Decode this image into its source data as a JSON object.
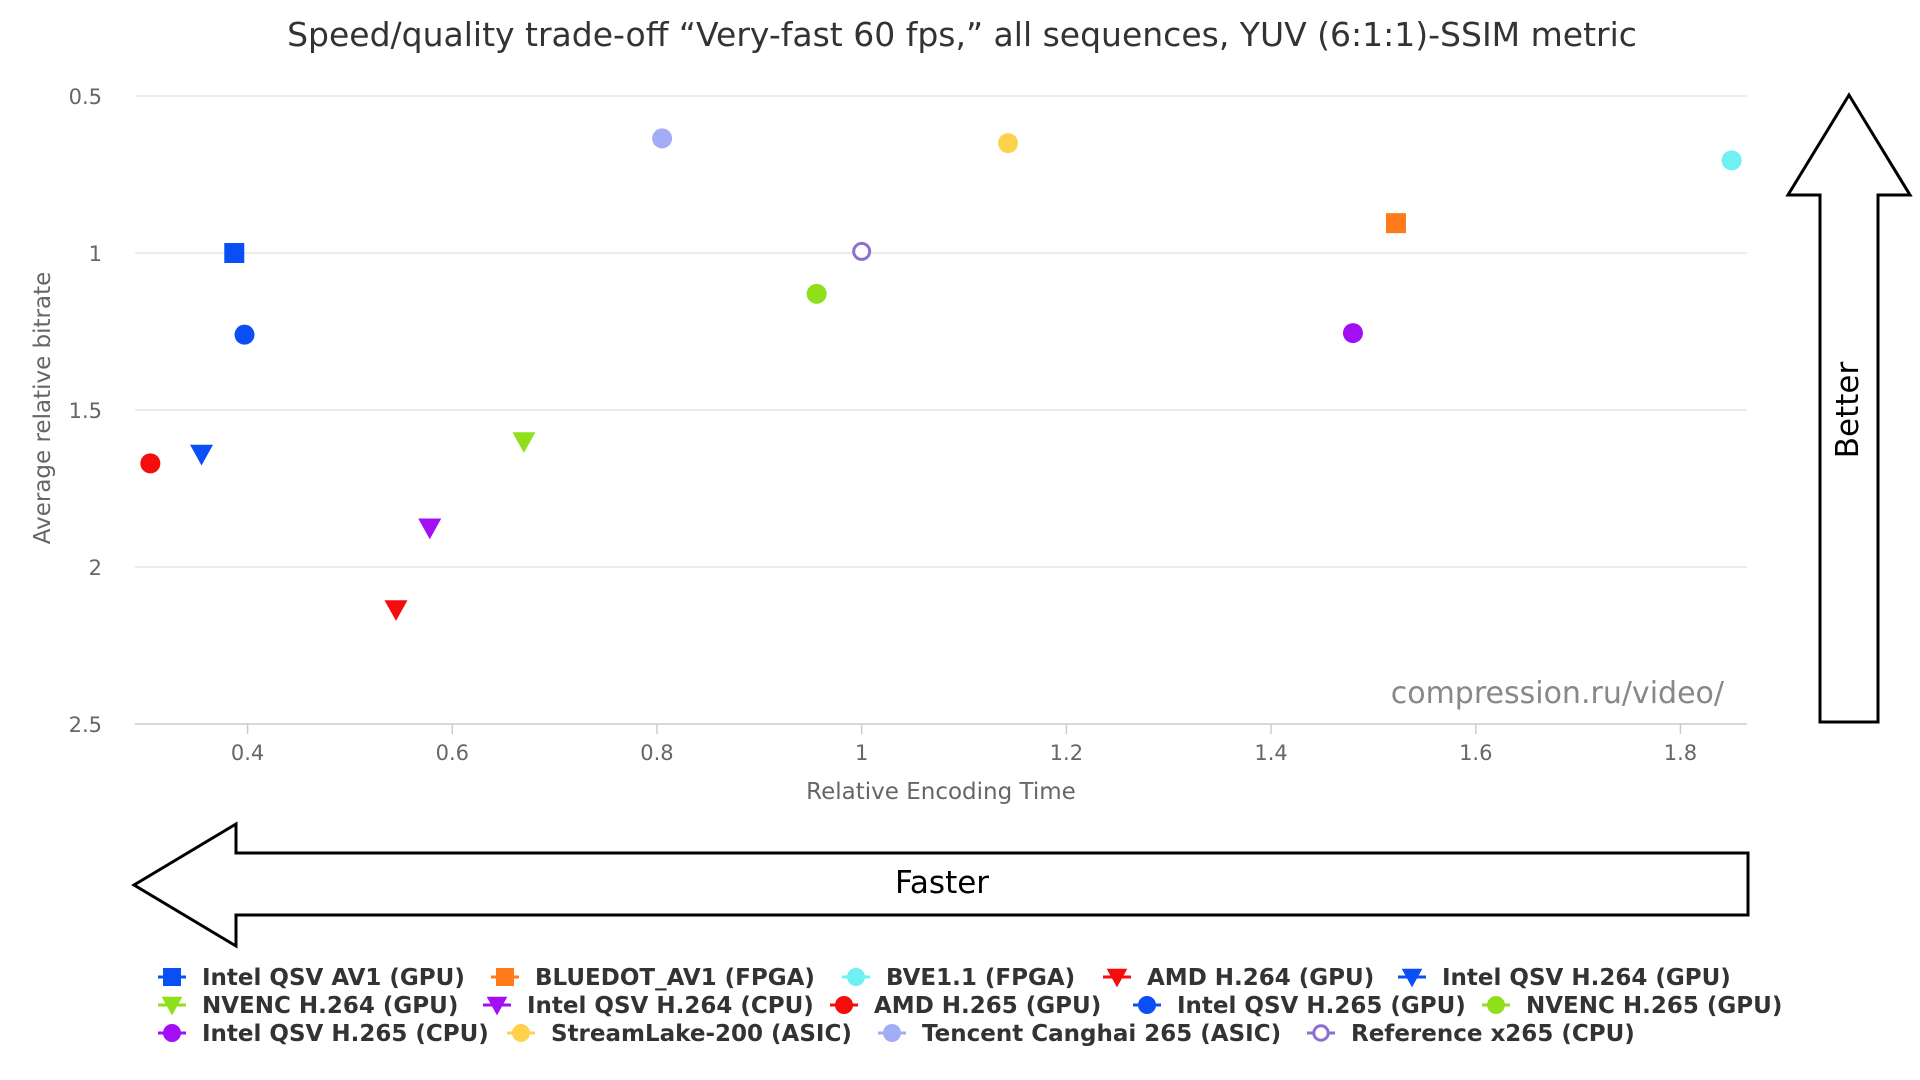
{
  "chart_data": {
    "type": "scatter",
    "title": "Speed/quality trade-off “Very-fast 60 fps,” all sequences, YUV (6:1:1)-SSIM metric",
    "xlabel": "Relative Encoding Time",
    "ylabel": "Average relative bitrate",
    "xlim": [
      0.29,
      1.865
    ],
    "ylim": [
      0.5,
      2.5
    ],
    "y_reversed": true,
    "x_ticks": [
      "0.4",
      "0.6",
      "0.8",
      "1",
      "1.2",
      "1.4",
      "1.6",
      "1.8"
    ],
    "x_tick_values": [
      0.4,
      0.6,
      0.8,
      1.0,
      1.2,
      1.4,
      1.6,
      1.8
    ],
    "y_ticks": [
      "0.5",
      "1",
      "1.5",
      "2",
      "2.5"
    ],
    "y_tick_values": [
      0.5,
      1.0,
      1.5,
      2.0,
      2.5
    ],
    "grid": "horizontal",
    "legend_position": "bottom",
    "watermark": "compression.ru/video/",
    "arrows": {
      "vertical_label": "Better",
      "horizontal_label": "Faster"
    },
    "series": [
      {
        "name": "Intel QSV AV1 (GPU)",
        "color": "#0a4ff5",
        "marker": "square",
        "points": [
          {
            "x": 0.387,
            "y": 1.0
          }
        ]
      },
      {
        "name": "BLUEDOT_AV1 (FPGA)",
        "color": "#ff7a1a",
        "marker": "square",
        "points": [
          {
            "x": 1.522,
            "y": 0.905
          }
        ]
      },
      {
        "name": "BVE1.1 (FPGA)",
        "color": "#6ef0f5",
        "marker": "circle",
        "points": [
          {
            "x": 1.85,
            "y": 0.705
          }
        ]
      },
      {
        "name": "AMD H.264 (GPU)",
        "color": "#f50d0d",
        "marker": "triangle-down",
        "points": [
          {
            "x": 0.545,
            "y": 2.135
          }
        ]
      },
      {
        "name": "Intel QSV H.264 (GPU)",
        "color": "#0a4ff5",
        "marker": "triangle-down",
        "points": [
          {
            "x": 0.355,
            "y": 1.64
          }
        ]
      },
      {
        "name": "NVENC H.264 (GPU)",
        "color": "#8fe01a",
        "marker": "triangle-down",
        "points": [
          {
            "x": 0.67,
            "y": 1.6
          }
        ]
      },
      {
        "name": "Intel QSV H.264 (CPU)",
        "color": "#a30ff5",
        "marker": "triangle-down",
        "points": [
          {
            "x": 0.578,
            "y": 1.875
          }
        ]
      },
      {
        "name": "AMD H.265 (GPU)",
        "color": "#f50d0d",
        "marker": "circle",
        "points": [
          {
            "x": 0.305,
            "y": 1.67
          }
        ]
      },
      {
        "name": "Intel QSV H.265 (GPU)",
        "color": "#0a4ff5",
        "marker": "circle",
        "points": [
          {
            "x": 0.397,
            "y": 1.26
          }
        ]
      },
      {
        "name": "NVENC H.265 (GPU)",
        "color": "#8fe01a",
        "marker": "circle",
        "points": [
          {
            "x": 0.956,
            "y": 1.13
          }
        ]
      },
      {
        "name": "Intel QSV H.265 (CPU)",
        "color": "#a30ff5",
        "marker": "circle",
        "points": [
          {
            "x": 1.48,
            "y": 1.255
          }
        ]
      },
      {
        "name": "StreamLake-200 (ASIC)",
        "color": "#ffd24d",
        "marker": "circle",
        "points": [
          {
            "x": 1.143,
            "y": 0.65
          }
        ]
      },
      {
        "name": "Tencent Canghai 265 (ASIC)",
        "color": "#a3adf5",
        "marker": "circle",
        "points": [
          {
            "x": 0.805,
            "y": 0.635
          }
        ]
      },
      {
        "name": "Reference x265 (CPU)",
        "color": "#8c6fcf",
        "marker": "circle-open",
        "points": [
          {
            "x": 1.0,
            "y": 0.995
          }
        ]
      }
    ]
  }
}
